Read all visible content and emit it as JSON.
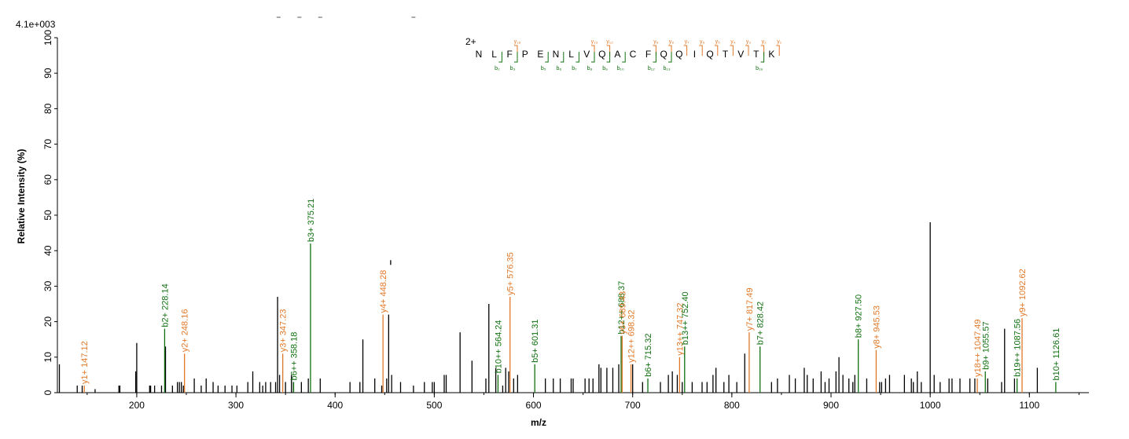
{
  "chart_data": {
    "type": "bar",
    "max_intensity_label": "4.1e+003",
    "xlabel": "m/z",
    "ylabel": "Relative   Intensity (%)",
    "xlim": [
      120,
      1160
    ],
    "ylim": [
      0,
      100
    ],
    "x_ticks": [
      200,
      300,
      400,
      500,
      600,
      700,
      800,
      900,
      1000,
      1100
    ],
    "y_ticks": [
      0,
      10,
      20,
      30,
      40,
      50,
      60,
      70,
      80,
      90,
      100
    ],
    "colors": {
      "b_ion": "#107010",
      "y_ion": "#e07828",
      "other": "#000000",
      "charge": "#00008b"
    },
    "peptide": {
      "charge": "2+",
      "residues": [
        "N",
        "L",
        "F",
        "P",
        "E",
        "N",
        "L",
        "V",
        "Q",
        "A",
        "C",
        "F",
        "Q",
        "Q",
        "I",
        "Q",
        "T",
        "V",
        "T",
        "K"
      ],
      "y_marks": [
        {
          "after": 3,
          "label": "y₁₈"
        },
        {
          "after": 8,
          "label": "y₁₃"
        },
        {
          "after": 9,
          "label": "y₁₂"
        },
        {
          "after": 12,
          "label": "y₉"
        },
        {
          "after": 13,
          "label": "y₈"
        },
        {
          "after": 14,
          "label": "y₇"
        },
        {
          "after": 15,
          "label": "y₆"
        },
        {
          "after": 16,
          "label": "y₅"
        },
        {
          "after": 17,
          "label": "y₄"
        },
        {
          "after": 18,
          "label": "y₃"
        },
        {
          "after": 19,
          "label": "y₂"
        },
        {
          "after": 20,
          "label": "y₁"
        }
      ],
      "b_marks": [
        {
          "after": 2,
          "label": "b₂"
        },
        {
          "after": 3,
          "label": "b₃"
        },
        {
          "after": 5,
          "label": "b₅"
        },
        {
          "after": 6,
          "label": "b₆"
        },
        {
          "after": 7,
          "label": "b₇"
        },
        {
          "after": 8,
          "label": "b₈"
        },
        {
          "after": 9,
          "label": "b₉"
        },
        {
          "after": 10,
          "label": "b₁₀"
        },
        {
          "after": 12,
          "label": "b₁₂"
        },
        {
          "after": 13,
          "label": "b₁₃"
        },
        {
          "after": 19,
          "label": "b₁₉"
        }
      ]
    },
    "annotated_peaks": [
      {
        "mz": 147.12,
        "intensity": 2,
        "type": "y",
        "label": "y1+ 147.12"
      },
      {
        "mz": 228.14,
        "intensity": 18,
        "type": "b",
        "label": "b2+ 228.14"
      },
      {
        "mz": 248.16,
        "intensity": 11,
        "type": "y",
        "label": "y2+ 248.16"
      },
      {
        "mz": 347.23,
        "intensity": 11,
        "type": "y",
        "label": "y3+ 347.23"
      },
      {
        "mz": 358.18,
        "intensity": 3,
        "type": "b",
        "label": "b6++ 358.18"
      },
      {
        "mz": 375.21,
        "intensity": 42,
        "type": "b",
        "label": "b3+ 375.21"
      },
      {
        "mz": 448.28,
        "intensity": 22,
        "type": "y",
        "label": "y4+ 448.28"
      },
      {
        "mz": 564.24,
        "intensity": 5,
        "type": "b",
        "label": "b10++ 564.24"
      },
      {
        "mz": 576.35,
        "intensity": 27,
        "type": "y",
        "label": "y5+ 576.35"
      },
      {
        "mz": 601.31,
        "intensity": 8,
        "type": "b",
        "label": "b5+ 601.31"
      },
      {
        "mz": 688.37,
        "intensity": 16,
        "type": "b",
        "label": "b12++ 688.37"
      },
      {
        "mz": 689.43,
        "intensity": 16,
        "type": "y",
        "label": "y6+ 689.43"
      },
      {
        "mz": 698.32,
        "intensity": 8,
        "type": "y",
        "label": "y12++ 698.32"
      },
      {
        "mz": 715.32,
        "intensity": 4,
        "type": "b",
        "label": "b6+ 715.32"
      },
      {
        "mz": 747.32,
        "intensity": 10,
        "type": "y",
        "label": "y13++ 747.32"
      },
      {
        "mz": 752.4,
        "intensity": 13,
        "type": "b",
        "label": "b13++ 752.40"
      },
      {
        "mz": 817.49,
        "intensity": 17,
        "type": "y",
        "label": "y7+ 817.49"
      },
      {
        "mz": 828.42,
        "intensity": 13,
        "type": "b",
        "label": "b7+ 828.42"
      },
      {
        "mz": 927.5,
        "intensity": 15,
        "type": "b",
        "label": "b8+ 927.50"
      },
      {
        "mz": 945.53,
        "intensity": 12,
        "type": "y",
        "label": "y8+ 945.53"
      },
      {
        "mz": 1047.49,
        "intensity": 4,
        "type": "y",
        "label": "y18++ 1047.49"
      },
      {
        "mz": 1055.57,
        "intensity": 6,
        "type": "b",
        "label": "b9+ 1055.57"
      },
      {
        "mz": 1087.56,
        "intensity": 4,
        "type": "b",
        "label": "b19++ 1087.56"
      },
      {
        "mz": 1092.62,
        "intensity": 21,
        "type": "y",
        "label": "y9+ 1092.62"
      },
      {
        "mz": 1126.61,
        "intensity": 3,
        "type": "b",
        "label": "b10+ 1126.61"
      }
    ],
    "other_peaks": [
      [
        122,
        8
      ],
      [
        140,
        2
      ],
      [
        145,
        2
      ],
      [
        158,
        1
      ],
      [
        182,
        2
      ],
      [
        183,
        2
      ],
      [
        199,
        6
      ],
      [
        200,
        14
      ],
      [
        213,
        2
      ],
      [
        214,
        2
      ],
      [
        218,
        2
      ],
      [
        225,
        2
      ],
      [
        229,
        13
      ],
      [
        236,
        2
      ],
      [
        241,
        3
      ],
      [
        243,
        3
      ],
      [
        245,
        3
      ],
      [
        247,
        2
      ],
      [
        258,
        4
      ],
      [
        265,
        2
      ],
      [
        270,
        4
      ],
      [
        277,
        3
      ],
      [
        282,
        2
      ],
      [
        289,
        2
      ],
      [
        296,
        2
      ],
      [
        301,
        2
      ],
      [
        312,
        3
      ],
      [
        317,
        6
      ],
      [
        324,
        3
      ],
      [
        327,
        2
      ],
      [
        330,
        3
      ],
      [
        335,
        3
      ],
      [
        340,
        3
      ],
      [
        342,
        27
      ],
      [
        344,
        5
      ],
      [
        350,
        3
      ],
      [
        356,
        5
      ],
      [
        358,
        3
      ],
      [
        366,
        3
      ],
      [
        373,
        4
      ],
      [
        385,
        4
      ],
      [
        415,
        3
      ],
      [
        425,
        3
      ],
      [
        428,
        15
      ],
      [
        440,
        4
      ],
      [
        447,
        2
      ],
      [
        452,
        4
      ],
      [
        454,
        22
      ],
      [
        457,
        5
      ],
      [
        466,
        3
      ],
      [
        479,
        2
      ],
      [
        490,
        3
      ],
      [
        498,
        3
      ],
      [
        500,
        3
      ],
      [
        510,
        5
      ],
      [
        512,
        5
      ],
      [
        526,
        17
      ],
      [
        538,
        9
      ],
      [
        552,
        4
      ],
      [
        555,
        25
      ],
      [
        562,
        7
      ],
      [
        569,
        2
      ],
      [
        572,
        7
      ],
      [
        575,
        6
      ],
      [
        580,
        4
      ],
      [
        584,
        5
      ],
      [
        612,
        4
      ],
      [
        620,
        4
      ],
      [
        627,
        4
      ],
      [
        638,
        4
      ],
      [
        640,
        4
      ],
      [
        652,
        4
      ],
      [
        656,
        4
      ],
      [
        660,
        4
      ],
      [
        666,
        8
      ],
      [
        668,
        7
      ],
      [
        674,
        7
      ],
      [
        680,
        7
      ],
      [
        686,
        8
      ],
      [
        700,
        8
      ],
      [
        710,
        3
      ],
      [
        728,
        3
      ],
      [
        736,
        5
      ],
      [
        740,
        6
      ],
      [
        745,
        5
      ],
      [
        750,
        3
      ],
      [
        760,
        3
      ],
      [
        770,
        3
      ],
      [
        775,
        3
      ],
      [
        781,
        5
      ],
      [
        784,
        7
      ],
      [
        792,
        3
      ],
      [
        797,
        5
      ],
      [
        805,
        3
      ],
      [
        813,
        11
      ],
      [
        840,
        3
      ],
      [
        846,
        4
      ],
      [
        858,
        5
      ],
      [
        864,
        4
      ],
      [
        873,
        7
      ],
      [
        876,
        5
      ],
      [
        882,
        4
      ],
      [
        890,
        6
      ],
      [
        894,
        3
      ],
      [
        898,
        4
      ],
      [
        905,
        6
      ],
      [
        908,
        10
      ],
      [
        912,
        5
      ],
      [
        918,
        4
      ],
      [
        922,
        3
      ],
      [
        924,
        5
      ],
      [
        936,
        4
      ],
      [
        949,
        3
      ],
      [
        951,
        3
      ],
      [
        955,
        4
      ],
      [
        959,
        5
      ],
      [
        974,
        5
      ],
      [
        981,
        4
      ],
      [
        983,
        3
      ],
      [
        987,
        6
      ],
      [
        991,
        3
      ],
      [
        1000,
        48
      ],
      [
        1004,
        5
      ],
      [
        1010,
        3
      ],
      [
        1019,
        4
      ],
      [
        1022,
        4
      ],
      [
        1030,
        4
      ],
      [
        1040,
        4
      ],
      [
        1045,
        4
      ],
      [
        1058,
        4
      ],
      [
        1072,
        3
      ],
      [
        1075,
        18
      ],
      [
        1085,
        4
      ],
      [
        1108,
        7
      ]
    ],
    "marker_dashes": [
      [
        341,
        345
      ],
      [
        362,
        366
      ],
      [
        383,
        387
      ],
      [
        477,
        481
      ]
    ],
    "extra_tick": {
      "mz": 456,
      "intensity": 36
    }
  }
}
